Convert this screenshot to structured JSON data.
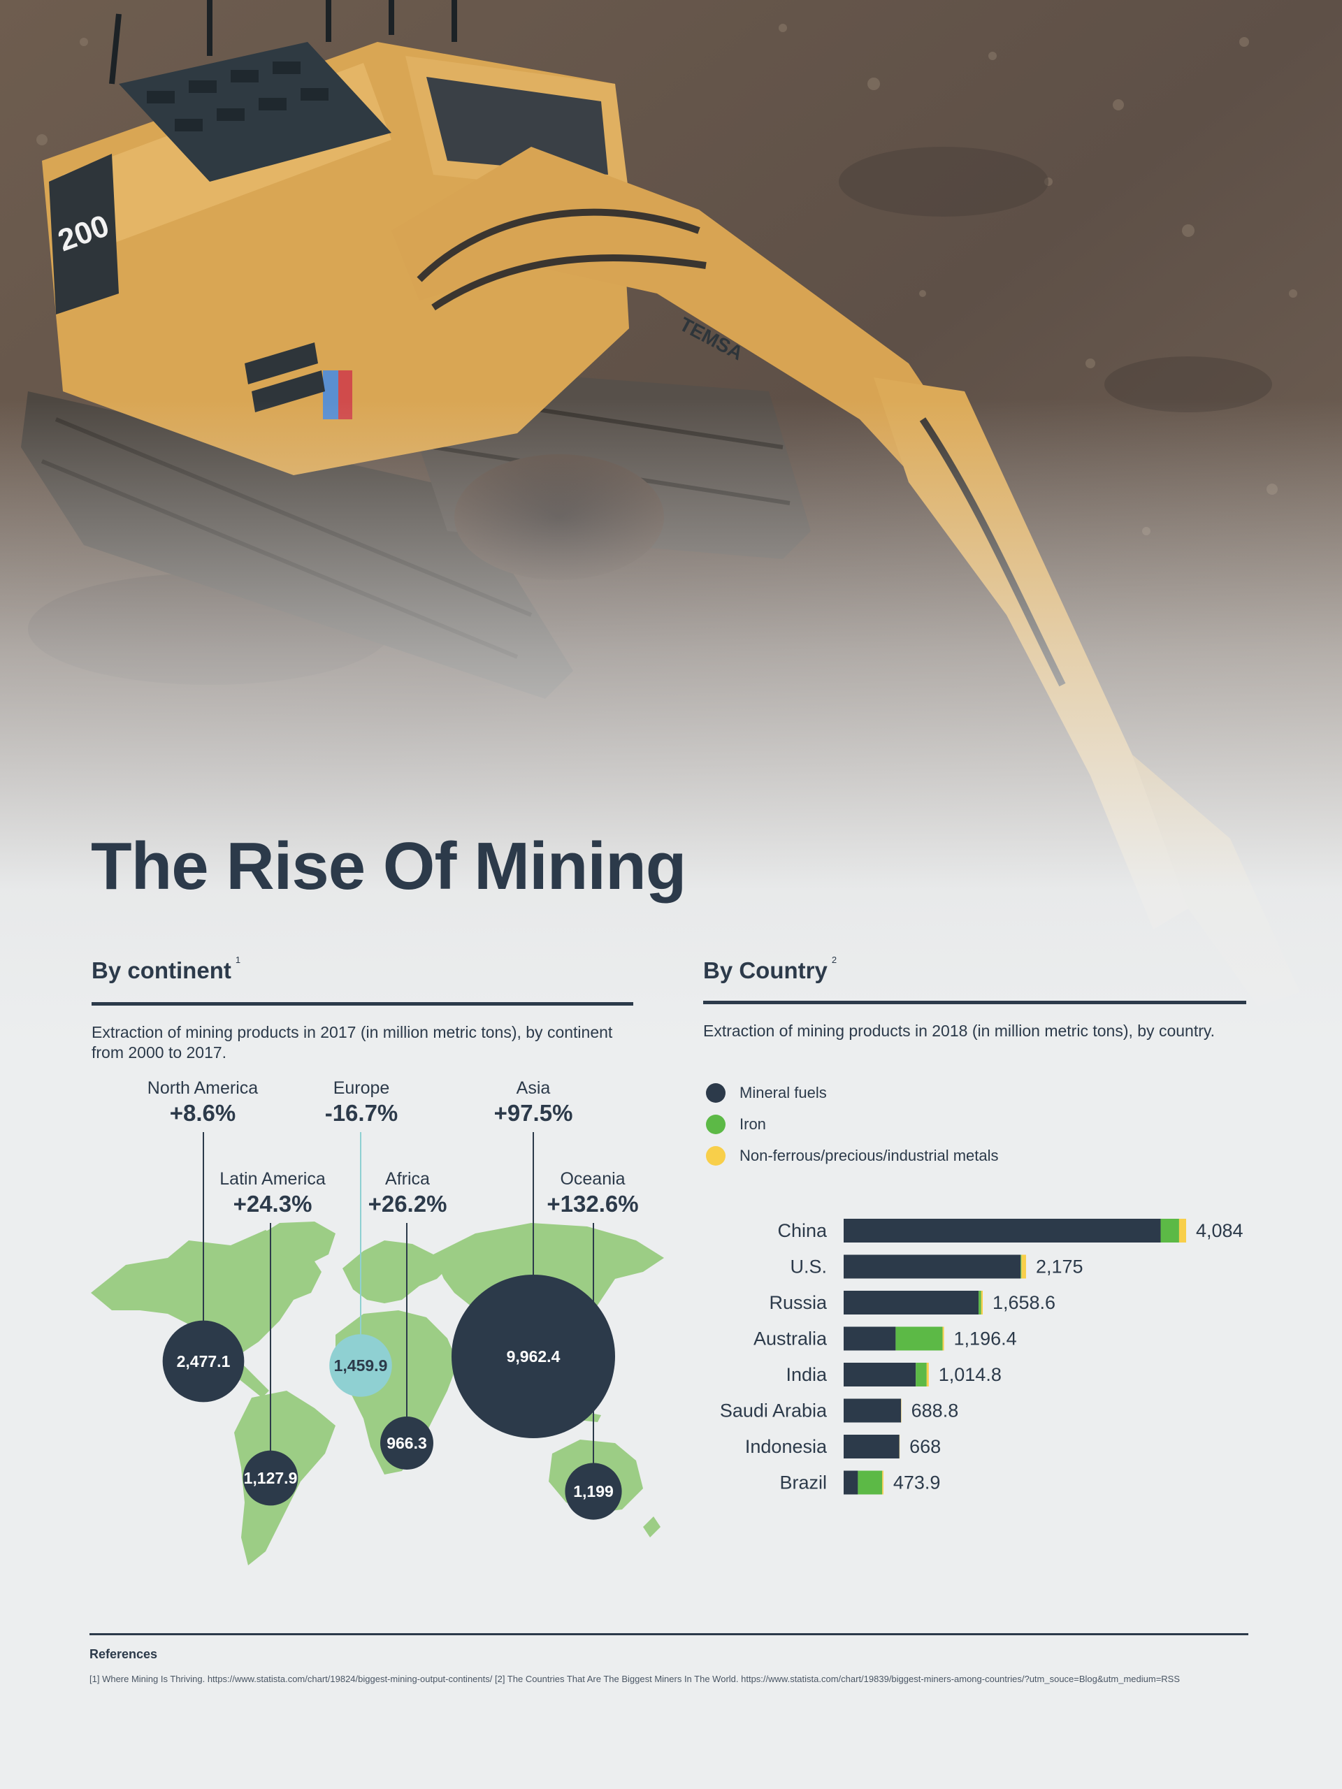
{
  "title": "The Rise Of Mining",
  "colors": {
    "dark": "#2c3a4a",
    "green": "#5cb946",
    "yellow": "#f8cf4a",
    "teal": "#8fd0d2",
    "map_green": "#9ccd85"
  },
  "continent_section": {
    "heading": "By continent",
    "ref": "1",
    "description": "Extraction of mining products in 2017 (in million metric tons), by continent from 2000 to 2017."
  },
  "country_section": {
    "heading": "By Country",
    "ref": "2",
    "description": "Extraction of mining products in 2018 (in million metric tons), by country."
  },
  "chart_data": [
    {
      "type": "bubble-map",
      "title": "",
      "regions": [
        {
          "name": "North America",
          "change": "+8.6%",
          "value": 2477.1,
          "value_label": "2,477.1",
          "color": "#2c3a4a"
        },
        {
          "name": "Europe",
          "change": "-16.7%",
          "value": 1459.9,
          "value_label": "1,459.9",
          "color": "#8fd0d2"
        },
        {
          "name": "Asia",
          "change": "+97.5%",
          "value": 9962.4,
          "value_label": "9,962.4",
          "color": "#2c3a4a"
        },
        {
          "name": "Latin America",
          "change": "+24.3%",
          "value": 1127.9,
          "value_label": "1,127.9",
          "color": "#2c3a4a"
        },
        {
          "name": "Africa",
          "change": "+26.2%",
          "value": 966.3,
          "value_label": "966.3",
          "color": "#2c3a4a"
        },
        {
          "name": "Oceania",
          "change": "+132.6%",
          "value": 1199,
          "value_label": "1,199",
          "color": "#2c3a4a"
        }
      ]
    },
    {
      "type": "bar",
      "orientation": "horizontal",
      "stacked": true,
      "legend_position": "top-left",
      "categories": [
        "China",
        "U.S.",
        "Russia",
        "Australia",
        "India",
        "Saudi Arabia",
        "Indonesia",
        "Brazil"
      ],
      "series": [
        {
          "name": "Mineral fuels",
          "color": "#2c3a4a",
          "values": [
            3780,
            2110,
            1610,
            620,
            860,
            685,
            665,
            170
          ]
        },
        {
          "name": "Iron",
          "color": "#5cb946",
          "values": [
            220,
            10,
            30,
            560,
            130,
            0,
            0,
            290
          ]
        },
        {
          "name": "Non-ferrous/precious/industrial metals",
          "color": "#f8cf4a",
          "values": [
            84,
            55,
            18.6,
            16.4,
            24.8,
            3.8,
            3,
            13.9
          ]
        }
      ],
      "totals": [
        4084,
        2175,
        1658.6,
        1196.4,
        1014.8,
        688.8,
        668,
        473.9
      ],
      "total_labels": [
        "4,084",
        "2,175",
        "1,658.6",
        "1,196.4",
        "1,014.8",
        "688.8",
        "668",
        "473.9"
      ]
    }
  ],
  "references": {
    "heading": "References",
    "text": "[1] Where Mining Is Thriving. https://www.statista.com/chart/19824/biggest-mining-output-continents/ [2] The Countries That Are The Biggest Miners In The World. https://www.statista.com/chart/19839/biggest-miners-among-countries/?utm_souce=Blog&utm_medium=RSS"
  }
}
